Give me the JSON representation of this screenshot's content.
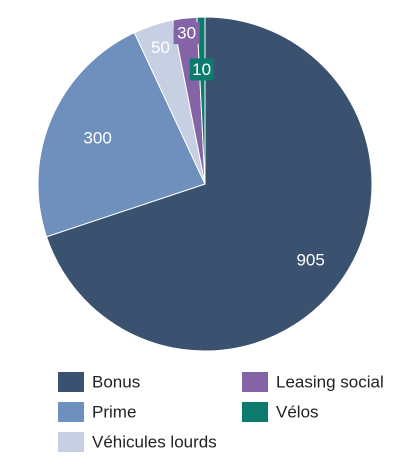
{
  "chart_data": {
    "type": "pie",
    "categories": [
      "Bonus",
      "Prime",
      "Véhicules lourds",
      "Leasing social",
      "Vélos"
    ],
    "values": [
      905,
      300,
      50,
      30,
      10
    ],
    "data_labels": [
      "905",
      "300",
      "50",
      "30",
      "10"
    ],
    "colors": [
      "#3b5170",
      "#6f8fbd",
      "#c6d0e2",
      "#8463a6",
      "#0c7a6d"
    ],
    "legend": {
      "placement": "bottom",
      "entries": [
        "Bonus",
        "Leasing social",
        "Prime",
        "Vélos",
        "Véhicules lourds"
      ]
    },
    "title": "",
    "start": "12 o'clock",
    "direction": "clockwise"
  }
}
